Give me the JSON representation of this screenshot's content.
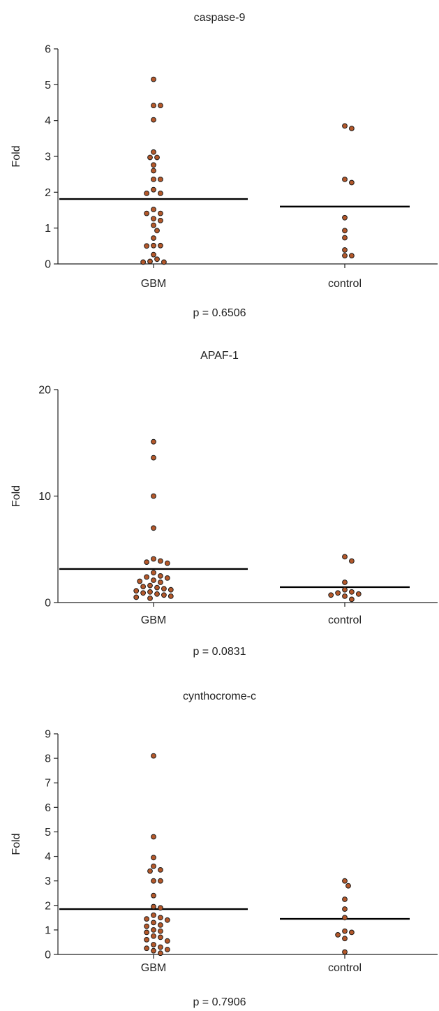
{
  "style": {
    "point_fill": "#b4582a",
    "point_stroke": "#1a1a1a",
    "axis_color": "#222222",
    "mean_line_color": "#000000"
  },
  "chart_data": [
    {
      "type": "scatter",
      "title": "caspase-9",
      "ylabel": "Fold",
      "xlabel": "",
      "categories": [
        "GBM",
        "control"
      ],
      "ylim": [
        0,
        6
      ],
      "yticks": [
        "0",
        "1",
        "2",
        "3",
        "4",
        "5",
        "6"
      ],
      "footer": "p = 0.6506",
      "series": [
        {
          "values": [
            5.15,
            4.42,
            4.42,
            4.02,
            3.12,
            2.97,
            2.97,
            2.76,
            2.6,
            2.36,
            2.36,
            2.07,
            1.97,
            1.97,
            1.52,
            1.41,
            1.41,
            1.26,
            1.21,
            1.08,
            0.93,
            0.72,
            0.51,
            0.51,
            0.5,
            0.26,
            0.13,
            0.07,
            0.05,
            0.05
          ],
          "mean": 1.81
        },
        {
          "values": [
            3.85,
            3.78,
            2.36,
            2.27,
            1.29,
            0.93,
            0.73,
            0.39,
            0.23,
            0.23
          ],
          "mean": 1.6
        }
      ]
    },
    {
      "type": "scatter",
      "title": "APAF-1",
      "ylabel": "Fold",
      "xlabel": "",
      "categories": [
        "GBM",
        "control"
      ],
      "ylim": [
        0,
        20
      ],
      "yticks": [
        "0",
        "10",
        "20"
      ],
      "footer": "p = 0.0831",
      "series": [
        {
          "values": [
            15.1,
            13.6,
            10.0,
            7.0,
            4.1,
            3.9,
            3.8,
            3.7,
            2.8,
            2.5,
            2.4,
            2.3,
            2.1,
            2.0,
            1.9,
            1.6,
            1.5,
            1.4,
            1.3,
            1.2,
            1.1,
            1.0,
            0.9,
            0.8,
            0.7,
            0.6,
            0.5,
            0.4
          ],
          "mean": 3.15
        },
        {
          "values": [
            4.3,
            3.9,
            1.9,
            1.2,
            1.0,
            0.9,
            0.8,
            0.7,
            0.6,
            0.3
          ],
          "mean": 1.45
        }
      ]
    },
    {
      "type": "scatter",
      "title": "cynthocrome-c",
      "ylabel": "Fold",
      "xlabel": "",
      "categories": [
        "GBM",
        "control"
      ],
      "ylim": [
        0,
        9
      ],
      "yticks": [
        "0",
        "1",
        "2",
        "3",
        "4",
        "5",
        "6",
        "7",
        "8",
        "9"
      ],
      "footer": "p = 0.7906",
      "series": [
        {
          "values": [
            8.1,
            4.8,
            3.95,
            3.6,
            3.45,
            3.4,
            3.0,
            3.0,
            2.4,
            1.95,
            1.9,
            1.6,
            1.5,
            1.45,
            1.4,
            1.3,
            1.2,
            1.15,
            1.0,
            0.95,
            0.9,
            0.75,
            0.7,
            0.6,
            0.55,
            0.4,
            0.3,
            0.25,
            0.2,
            0.15,
            0.05
          ],
          "mean": 1.85
        },
        {
          "values": [
            3.0,
            2.8,
            2.25,
            1.85,
            1.5,
            0.95,
            0.9,
            0.8,
            0.65,
            0.1
          ],
          "mean": 1.45
        }
      ]
    }
  ]
}
